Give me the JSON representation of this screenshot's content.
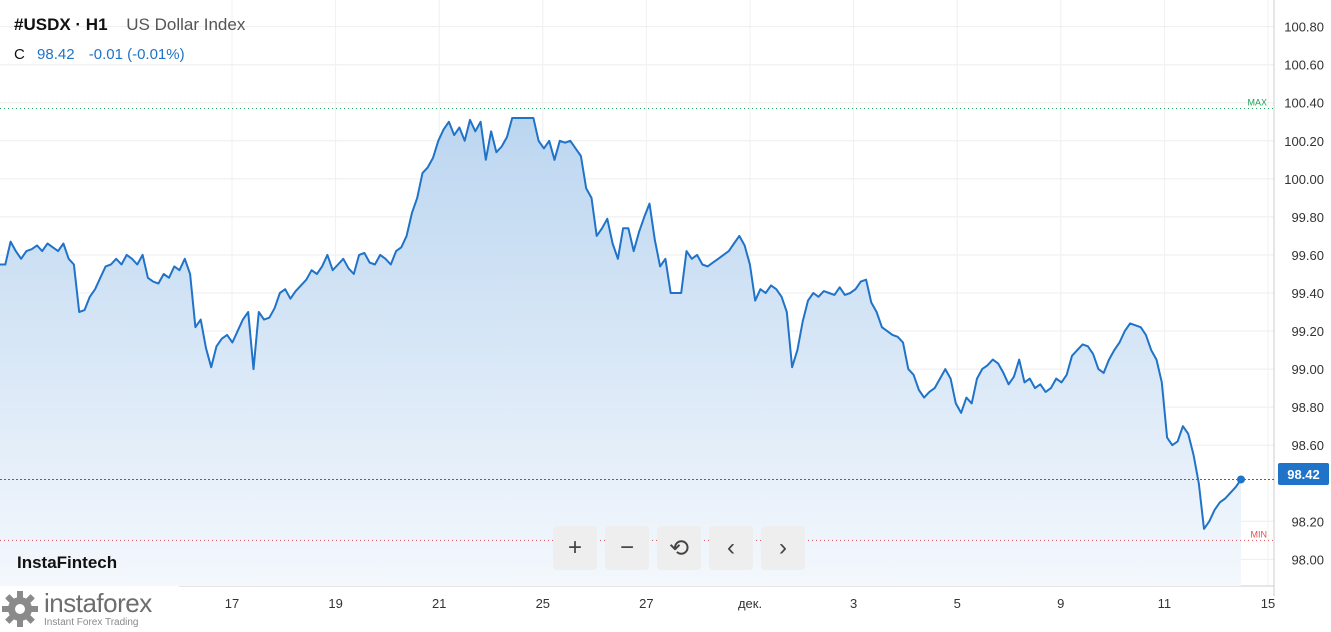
{
  "header": {
    "symbol": "#USDX · H1",
    "description": "US Dollar Index",
    "close_label": "C",
    "close_value": "98.42",
    "change": "-0.01 (-0.01%)"
  },
  "brand": "InstaFintech",
  "logo": {
    "name": "instaforex",
    "tagline": "Instant Forex Trading"
  },
  "toolbar": [
    "+",
    "−",
    "⟲",
    "‹",
    "›"
  ],
  "colors": {
    "line": "#1f73c8",
    "max": "#22a05a",
    "min": "#e05050",
    "accent": "#1f73c8"
  },
  "chart_data": {
    "type": "area",
    "title": "US Dollar Index",
    "x_tick_labels": [
      "17",
      "19",
      "21",
      "25",
      "27",
      "дек.",
      "3",
      "5",
      "9",
      "11",
      "15"
    ],
    "y_tick_labels": [
      "100.80",
      "100.60",
      "100.40",
      "100.20",
      "100.00",
      "99.80",
      "99.60",
      "99.40",
      "99.20",
      "99.00",
      "98.80",
      "98.60",
      "98.20",
      "98.00"
    ],
    "ylim": [
      97.86,
      100.94
    ],
    "max_line": {
      "label": "MAX",
      "value": 100.37
    },
    "min_line": {
      "label": "MIN",
      "value": 98.1
    },
    "last_price": {
      "label": "98.42",
      "value": 98.42
    },
    "series": [
      {
        "values": [
          99.55,
          99.55,
          99.67,
          99.62,
          99.58,
          99.62,
          99.63,
          99.65,
          99.62,
          99.66,
          99.64,
          99.62,
          99.66,
          99.58,
          99.55,
          99.3,
          99.31,
          99.38,
          99.42,
          99.48,
          99.54,
          99.55,
          99.58,
          99.55,
          99.6,
          99.58,
          99.55,
          99.6,
          99.48,
          99.46,
          99.45,
          99.5,
          99.48,
          99.54,
          99.52,
          99.58,
          99.5,
          99.22,
          99.26,
          99.11,
          99.01,
          99.12,
          99.16,
          99.18,
          99.14,
          99.2,
          99.26,
          99.3,
          99.0,
          99.3,
          99.26,
          99.27,
          99.32,
          99.4,
          99.42,
          99.37,
          99.41,
          99.44,
          99.47,
          99.52,
          99.5,
          99.54,
          99.6,
          99.52,
          99.55,
          99.58,
          99.53,
          99.5,
          99.6,
          99.61,
          99.56,
          99.55,
          99.6,
          99.58,
          99.55,
          99.62,
          99.64,
          99.7,
          99.82,
          99.9,
          100.03,
          100.06,
          100.11,
          100.2,
          100.26,
          100.3,
          100.23,
          100.27,
          100.2,
          100.31,
          100.25,
          100.3,
          100.1,
          100.25,
          100.14,
          100.17,
          100.22,
          100.32,
          100.32,
          100.32,
          100.32,
          100.32,
          100.2,
          100.16,
          100.2,
          100.1,
          100.2,
          100.19,
          100.2,
          100.16,
          100.12,
          99.95,
          99.9,
          99.7,
          99.74,
          99.79,
          99.66,
          99.58,
          99.74,
          99.74,
          99.62,
          99.72,
          99.8,
          99.87,
          99.68,
          99.54,
          99.58,
          99.4,
          99.4,
          99.4,
          99.62,
          99.58,
          99.6,
          99.55,
          99.54,
          99.56,
          99.58,
          99.6,
          99.62,
          99.66,
          99.7,
          99.65,
          99.55,
          99.36,
          99.42,
          99.4,
          99.44,
          99.42,
          99.38,
          99.3,
          99.01,
          99.1,
          99.25,
          99.36,
          99.4,
          99.38,
          99.41,
          99.4,
          99.39,
          99.43,
          99.39,
          99.4,
          99.42,
          99.46,
          99.47,
          99.35,
          99.3,
          99.22,
          99.2,
          99.18,
          99.17,
          99.14,
          99.0,
          98.97,
          98.89,
          98.85,
          98.88,
          98.9,
          98.95,
          99.0,
          98.95,
          98.82,
          98.77,
          98.85,
          98.82,
          98.95,
          99.0,
          99.02,
          99.05,
          99.03,
          98.98,
          98.92,
          98.96,
          99.05,
          98.93,
          98.95,
          98.9,
          98.92,
          98.88,
          98.9,
          98.95,
          98.93,
          98.97,
          99.07,
          99.1,
          99.13,
          99.12,
          99.08,
          99.0,
          98.98,
          99.05,
          99.1,
          99.14,
          99.2,
          99.24,
          99.23,
          99.22,
          99.18,
          99.1,
          99.05,
          98.93,
          98.64,
          98.6,
          98.62,
          98.7,
          98.66,
          98.55,
          98.4,
          98.16,
          98.2,
          98.26,
          98.3,
          98.32,
          98.35,
          98.38,
          98.42
        ]
      }
    ]
  }
}
